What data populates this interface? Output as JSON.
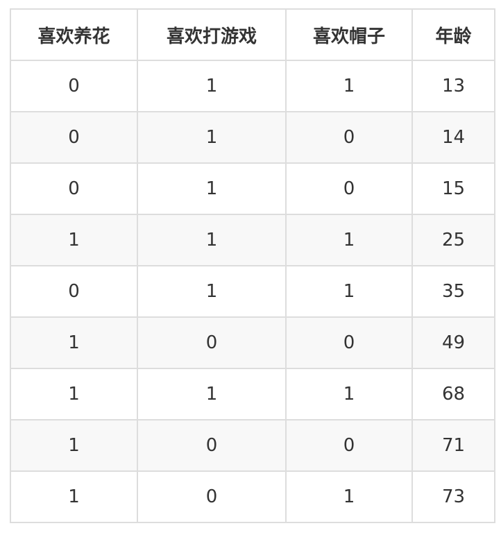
{
  "headers": [
    "喜欢养花",
    "喜欢打游戏",
    "喜欢帽子",
    "年龄"
  ],
  "rows": [
    [
      "0",
      "1",
      "1",
      "13"
    ],
    [
      "0",
      "1",
      "0",
      "14"
    ],
    [
      "0",
      "1",
      "0",
      "15"
    ],
    [
      "1",
      "1",
      "1",
      "25"
    ],
    [
      "0",
      "1",
      "1",
      "35"
    ],
    [
      "1",
      "0",
      "0",
      "49"
    ],
    [
      "1",
      "1",
      "1",
      "68"
    ],
    [
      "1",
      "0",
      "0",
      "71"
    ],
    [
      "1",
      "0",
      "1",
      "73"
    ]
  ]
}
